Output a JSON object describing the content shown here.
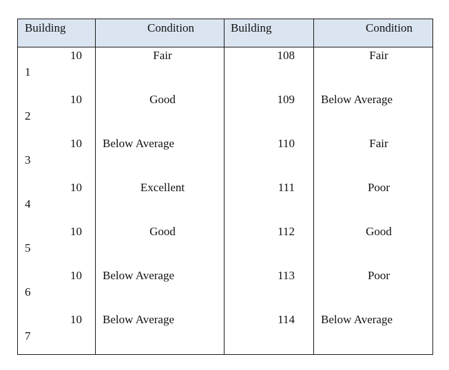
{
  "headers": [
    "Building",
    "Condition",
    "Building",
    "Condition"
  ],
  "rows": [
    {
      "b1_top": "10",
      "b1_bottom": "1",
      "c1": "Fair",
      "b2": "108",
      "c2": "Fair"
    },
    {
      "b1_top": "10",
      "b1_bottom": "2",
      "c1": "Good",
      "b2": "109",
      "c2": "Below Average"
    },
    {
      "b1_top": "10",
      "b1_bottom": "3",
      "c1": "Below Average",
      "b2": "110",
      "c2": "Fair"
    },
    {
      "b1_top": "10",
      "b1_bottom": "4",
      "c1": "Excellent",
      "b2": "111",
      "c2": "Poor"
    },
    {
      "b1_top": "10",
      "b1_bottom": "5",
      "c1": "Good",
      "b2": "112",
      "c2": "Good"
    },
    {
      "b1_top": "10",
      "b1_bottom": "6",
      "c1": "Below Average",
      "b2": "113",
      "c2": "Poor"
    },
    {
      "b1_top": "10",
      "b1_bottom": "7",
      "c1": "Below Average",
      "b2": "114",
      "c2": "Below Average"
    }
  ],
  "colors": {
    "header_bg": "#dbe5f1",
    "border": "#1a1a1a",
    "text": "#111111"
  }
}
